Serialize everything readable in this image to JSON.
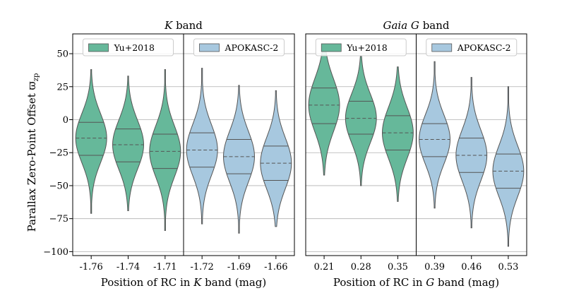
{
  "chart_data": {
    "type": "violin",
    "ylabel": "Parallax Zero-Point Offset ϖ",
    "ylabel_sub": "zp",
    "ylim": [
      -103,
      65
    ],
    "yticks": [
      50,
      25,
      0,
      -25,
      -50,
      -75,
      -100
    ],
    "ytick_labels": [
      "50",
      "25",
      "0",
      "−25",
      "−50",
      "−75",
      "−100"
    ],
    "grid": "horizontal",
    "groups": [
      {
        "title_italic": "K",
        "title_rest": " band",
        "xlabel_pre": "Position of RC in ",
        "xlabel_italic": "K",
        "xlabel_post": " band (mag)",
        "panels": [
          {
            "legend": "Yu+2018",
            "color": "#66b89a",
            "categories": [
              "-1.76",
              "-1.74",
              "-1.71"
            ],
            "violins": [
              {
                "min": -71,
                "max": 38,
                "q1": -27,
                "median": -14,
                "q3": -2
              },
              {
                "min": -69,
                "max": 33,
                "q1": -32,
                "median": -19,
                "q3": -7
              },
              {
                "min": -84,
                "max": 38,
                "q1": -37,
                "median": -24,
                "q3": -11
              }
            ]
          },
          {
            "legend": "APOKASC-2",
            "color": "#a7c8df",
            "categories": [
              "-1.72",
              "-1.69",
              "-1.66"
            ],
            "violins": [
              {
                "min": -79,
                "max": 39,
                "q1": -36,
                "median": -23,
                "q3": -10
              },
              {
                "min": -86,
                "max": 26,
                "q1": -41,
                "median": -28,
                "q3": -15
              },
              {
                "min": -81,
                "max": 22,
                "q1": -46,
                "median": -33,
                "q3": -20
              }
            ]
          }
        ]
      },
      {
        "title_italic": "Gaia G",
        "title_rest": " band",
        "xlabel_pre": "Position of RC in ",
        "xlabel_italic": "G",
        "xlabel_post": " band (mag)",
        "panels": [
          {
            "legend": "Yu+2018",
            "color": "#66b89a",
            "categories": [
              "0.21",
              "0.28",
              "0.35"
            ],
            "violins": [
              {
                "min": -42,
                "max": 57,
                "q1": -3,
                "median": 11,
                "q3": 24
              },
              {
                "min": -50,
                "max": 48,
                "q1": -11,
                "median": 1,
                "q3": 14
              },
              {
                "min": -62,
                "max": 40,
                "q1": -23,
                "median": -10,
                "q3": 3
              }
            ]
          },
          {
            "legend": "APOKASC-2",
            "color": "#a7c8df",
            "categories": [
              "0.39",
              "0.46",
              "0.53"
            ],
            "violins": [
              {
                "min": -67,
                "max": 44,
                "q1": -28,
                "median": -15,
                "q3": -3
              },
              {
                "min": -82,
                "max": 32,
                "q1": -40,
                "median": -27,
                "q3": -14
              },
              {
                "min": -96,
                "max": 25,
                "q1": -52,
                "median": -39,
                "q3": -26
              }
            ]
          }
        ]
      }
    ]
  }
}
